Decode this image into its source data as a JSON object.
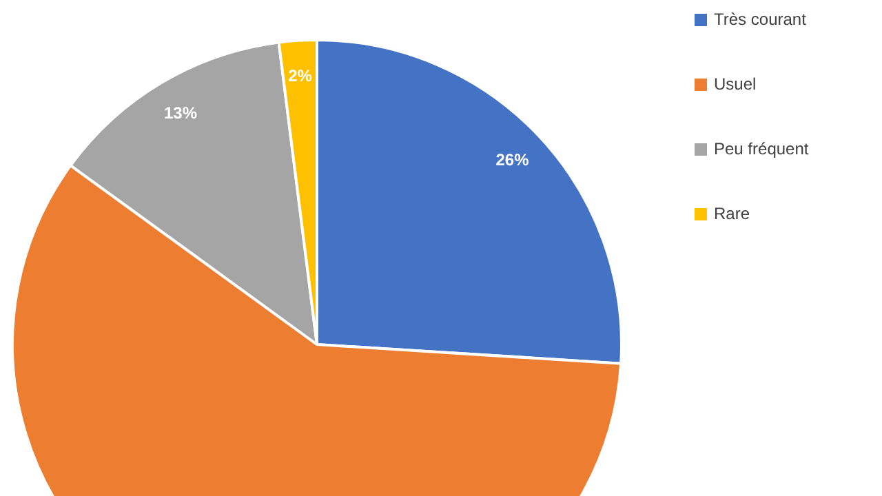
{
  "chart_data": {
    "type": "pie",
    "categories": [
      "Très courant",
      "Usuel",
      "Peu fréquent",
      "Rare"
    ],
    "values": [
      26,
      59,
      13,
      2
    ],
    "colors": [
      "#4472c4",
      "#ed7d31",
      "#a5a5a5",
      "#ffc000"
    ],
    "value_labels": [
      "26%",
      null,
      "13%",
      "2%"
    ],
    "legend": "right"
  }
}
